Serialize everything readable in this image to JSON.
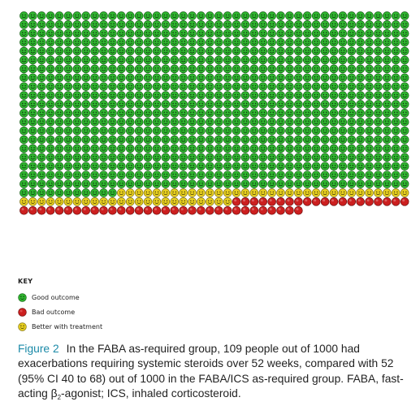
{
  "chart_data": {
    "type": "icon-array",
    "total": 1000,
    "columns": 44,
    "categories": [
      {
        "name": "Good outcome",
        "count": 891,
        "color": "#2fb52f"
      },
      {
        "name": "Better with treatment",
        "count": 57,
        "color": "#e8d020"
      },
      {
        "name": "Bad outcome",
        "count": 52,
        "color": "#cc1f1f"
      }
    ]
  },
  "key": {
    "title": "KEY",
    "items": [
      {
        "label": "Good outcome",
        "color": "#2fb52f",
        "icon": "green-smiley-icon"
      },
      {
        "label": "Bad outcome",
        "color": "#cc1f1f",
        "icon": "red-circle-icon"
      },
      {
        "label": "Better with treatment",
        "color": "#e8d020",
        "icon": "yellow-smiley-icon"
      }
    ]
  },
  "caption": {
    "label": "Figure 2",
    "text_1": "In the FABA as-required group, 109 people out of 1000 had exacerbations requiring systemic steroids over 52 weeks, compared with 52 (95% CI 40 to 68) out of 1000 in the FABA/ICS as-required group. FABA, fast-acting β",
    "subscript": "2",
    "text_2": "-agonist; ICS, inhaled corticosteroid."
  }
}
